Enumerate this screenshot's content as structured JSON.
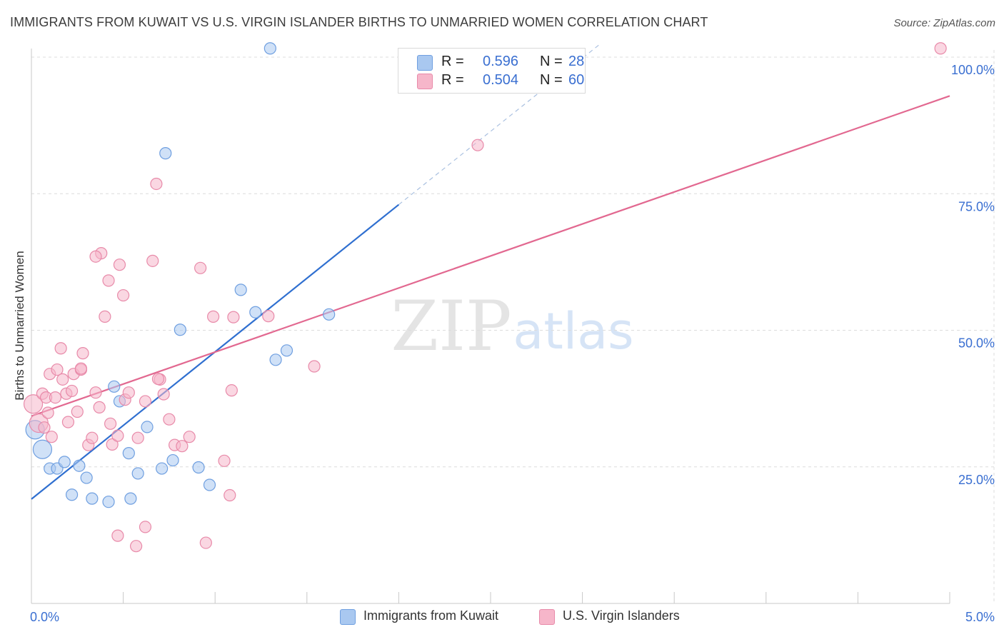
{
  "title": "IMMIGRANTS FROM KUWAIT VS U.S. VIRGIN ISLANDER BIRTHS TO UNMARRIED WOMEN CORRELATION CHART",
  "source": "Source: ZipAtlas.com",
  "watermark": {
    "zip": "ZIP",
    "atlas": "atlas"
  },
  "legend": {
    "r_label": "R =",
    "n_label": "N =",
    "rows": [
      {
        "r": "0.596",
        "n": "28",
        "color": "#a9c8f0"
      },
      {
        "r": "0.504",
        "n": "60",
        "color": "#f6b6ca"
      }
    ]
  },
  "bottom_legend": [
    {
      "label": "Immigrants from Kuwait",
      "color": "#a9c8f0"
    },
    {
      "label": "U.S. Virgin Islanders",
      "color": "#f6b6ca"
    }
  ],
  "chart_data": {
    "type": "scatter",
    "title": "IMMIGRANTS FROM KUWAIT VS U.S. VIRGIN ISLANDER BIRTHS TO UNMARRIED WOMEN CORRELATION CHART",
    "xlabel": "",
    "ylabel": "Births to Unmarried Women",
    "xlim": [
      0,
      5
    ],
    "ylim": [
      0,
      100
    ],
    "x_tick_labels": [
      "0.0%",
      "5.0%"
    ],
    "y_ticks": [
      {
        "value": 100,
        "label": "100.0%"
      },
      {
        "value": 75,
        "label": "75.0%"
      },
      {
        "value": 50,
        "label": "50.0%"
      },
      {
        "value": 25,
        "label": "25.0%"
      }
    ],
    "series": [
      {
        "name": "Immigrants from Kuwait",
        "color": "#a9c8f0",
        "stroke": "#6f9fe0",
        "trend": {
          "x0": 0.0,
          "y0": 19.1,
          "x1": 2.0,
          "y1": 73.0,
          "dash_x1": 3.1,
          "dash_y1": 102.5,
          "color": "#2f6fd0"
        },
        "points": [
          {
            "x": 0.02,
            "y": 31.8,
            "big": true
          },
          {
            "x": 0.06,
            "y": 28.2,
            "big": true
          },
          {
            "x": 0.1,
            "y": 24.7
          },
          {
            "x": 0.14,
            "y": 24.7
          },
          {
            "x": 0.18,
            "y": 25.9
          },
          {
            "x": 0.26,
            "y": 25.2
          },
          {
            "x": 0.22,
            "y": 19.9
          },
          {
            "x": 0.3,
            "y": 23.0
          },
          {
            "x": 0.33,
            "y": 19.2
          },
          {
            "x": 0.42,
            "y": 18.6
          },
          {
            "x": 0.48,
            "y": 37.0
          },
          {
            "x": 0.45,
            "y": 39.7
          },
          {
            "x": 0.53,
            "y": 27.5
          },
          {
            "x": 0.54,
            "y": 19.2
          },
          {
            "x": 0.58,
            "y": 23.8
          },
          {
            "x": 0.63,
            "y": 32.3
          },
          {
            "x": 0.71,
            "y": 24.7
          },
          {
            "x": 0.77,
            "y": 26.2
          },
          {
            "x": 0.81,
            "y": 50.1
          },
          {
            "x": 0.91,
            "y": 24.9
          },
          {
            "x": 0.97,
            "y": 21.7
          },
          {
            "x": 1.14,
            "y": 57.4
          },
          {
            "x": 1.22,
            "y": 53.3
          },
          {
            "x": 1.33,
            "y": 44.6
          },
          {
            "x": 1.39,
            "y": 46.3
          },
          {
            "x": 1.62,
            "y": 52.9
          },
          {
            "x": 0.73,
            "y": 82.4
          },
          {
            "x": 1.3,
            "y": 101.6
          }
        ]
      },
      {
        "name": "U.S. Virgin Islanders",
        "color": "#f6b6ca",
        "stroke": "#e88aa9",
        "trend": {
          "x0": 0.0,
          "y0": 34.3,
          "x1": 5.0,
          "y1": 92.9,
          "color": "#e26890"
        },
        "points": [
          {
            "x": 0.01,
            "y": 36.5,
            "big": true
          },
          {
            "x": 0.04,
            "y": 33.0,
            "big": true
          },
          {
            "x": 0.06,
            "y": 38.4
          },
          {
            "x": 0.08,
            "y": 37.7
          },
          {
            "x": 0.09,
            "y": 34.9
          },
          {
            "x": 0.1,
            "y": 42.0
          },
          {
            "x": 0.11,
            "y": 30.5
          },
          {
            "x": 0.13,
            "y": 37.7
          },
          {
            "x": 0.14,
            "y": 42.8
          },
          {
            "x": 0.16,
            "y": 46.7
          },
          {
            "x": 0.17,
            "y": 41.0
          },
          {
            "x": 0.19,
            "y": 38.4
          },
          {
            "x": 0.2,
            "y": 33.2
          },
          {
            "x": 0.22,
            "y": 38.9
          },
          {
            "x": 0.23,
            "y": 42.0
          },
          {
            "x": 0.25,
            "y": 35.1
          },
          {
            "x": 0.27,
            "y": 42.8
          },
          {
            "x": 0.28,
            "y": 45.8
          },
          {
            "x": 0.31,
            "y": 29.0
          },
          {
            "x": 0.33,
            "y": 30.3
          },
          {
            "x": 0.35,
            "y": 38.6
          },
          {
            "x": 0.37,
            "y": 35.9
          },
          {
            "x": 0.38,
            "y": 64.1
          },
          {
            "x": 0.4,
            "y": 52.5
          },
          {
            "x": 0.42,
            "y": 59.1
          },
          {
            "x": 0.43,
            "y": 32.9
          },
          {
            "x": 0.44,
            "y": 29.1
          },
          {
            "x": 0.47,
            "y": 30.7
          },
          {
            "x": 0.48,
            "y": 62.0
          },
          {
            "x": 0.5,
            "y": 56.4
          },
          {
            "x": 0.51,
            "y": 37.3
          },
          {
            "x": 0.53,
            "y": 38.6
          },
          {
            "x": 0.58,
            "y": 30.3
          },
          {
            "x": 0.62,
            "y": 37.0
          },
          {
            "x": 0.66,
            "y": 62.7
          },
          {
            "x": 0.68,
            "y": 76.8
          },
          {
            "x": 0.7,
            "y": 41.0
          },
          {
            "x": 0.72,
            "y": 38.3
          },
          {
            "x": 0.75,
            "y": 33.7
          },
          {
            "x": 0.78,
            "y": 29.0
          },
          {
            "x": 0.82,
            "y": 28.8
          },
          {
            "x": 0.86,
            "y": 30.5
          },
          {
            "x": 0.92,
            "y": 61.4
          },
          {
            "x": 0.99,
            "y": 52.5
          },
          {
            "x": 1.05,
            "y": 26.1
          },
          {
            "x": 1.08,
            "y": 19.8
          },
          {
            "x": 1.09,
            "y": 39.0
          },
          {
            "x": 1.1,
            "y": 52.4
          },
          {
            "x": 1.29,
            "y": 52.6
          },
          {
            "x": 1.54,
            "y": 43.4
          },
          {
            "x": 0.95,
            "y": 11.1
          },
          {
            "x": 0.57,
            "y": 10.5
          },
          {
            "x": 0.62,
            "y": 14.0
          },
          {
            "x": 0.47,
            "y": 12.4
          },
          {
            "x": 0.35,
            "y": 63.5
          },
          {
            "x": 0.69,
            "y": 41.1
          },
          {
            "x": 2.43,
            "y": 83.9
          },
          {
            "x": 4.95,
            "y": 101.6
          },
          {
            "x": 0.27,
            "y": 43.0
          },
          {
            "x": 0.07,
            "y": 32.2
          }
        ]
      }
    ]
  }
}
